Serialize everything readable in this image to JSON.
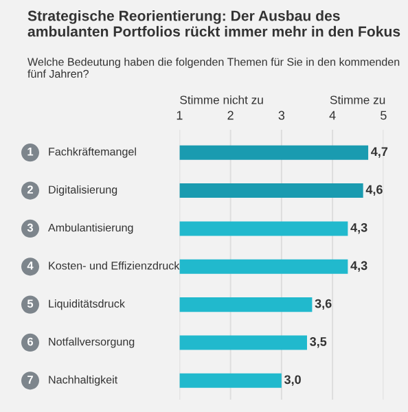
{
  "chart_data": {
    "type": "bar",
    "orientation": "horizontal",
    "title": "Strategische Reorientierung: Der Ausbau des ambulanten Portfolios rückt immer mehr in den Fokus",
    "subtitle": "Welche Bedeutung haben die folgenden Themen für Sie in den kommenden fünf Jahren?",
    "annotations": [
      "Stimme nicht zu",
      "Stimme zu"
    ],
    "categories": [
      "1 Fachkräftemangel",
      "2 Digitalisierung",
      "3 Ambulantisierung",
      "4 Kosten- und Effizienzdruck",
      "5 Liquiditätsdruck",
      "6 Notfallversorgung",
      "7 Nachhaltigkeit"
    ],
    "values": [
      4.7,
      4.6,
      4.3,
      4.3,
      3.6,
      3.5,
      3.0
    ],
    "value_labels": [
      "4,7",
      "4,6",
      "4,3",
      "4,3",
      "3,6",
      "3,5",
      "3,0"
    ],
    "colors": [
      "#1a9bb0",
      "#1a9bb0",
      "#21b9cd",
      "#21b9cd",
      "#21b9cd",
      "#21b9cd",
      "#21b9cd"
    ],
    "xlim": [
      1,
      5
    ],
    "xticks": [
      1,
      2,
      3,
      4,
      5
    ],
    "grid": "x",
    "tick_labels": "x"
  }
}
